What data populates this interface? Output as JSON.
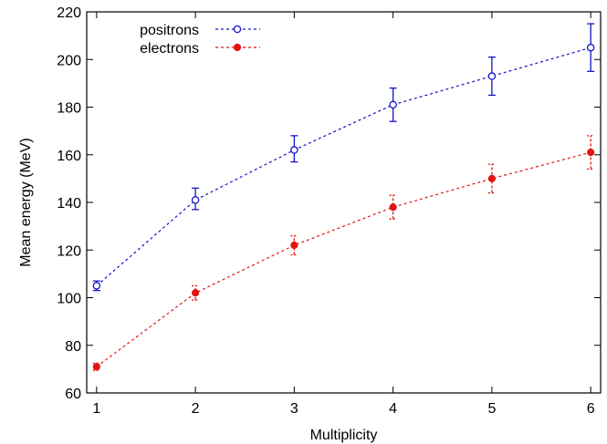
{
  "chart_data": {
    "type": "line",
    "title": "",
    "xlabel": "Multiplicity",
    "ylabel": "Mean energy (MeV)",
    "xlim": [
      0.9,
      6.1
    ],
    "ylim": [
      60,
      220
    ],
    "xticks": [
      1,
      2,
      3,
      4,
      5,
      6
    ],
    "yticks": [
      60,
      80,
      100,
      120,
      140,
      160,
      180,
      200,
      220
    ],
    "grid": false,
    "legend": "top-left",
    "x": [
      1,
      2,
      3,
      4,
      5,
      6
    ],
    "series": [
      {
        "name": "positrons",
        "color": "#1414c8",
        "marker": "open-circle",
        "line": "dashed",
        "values": [
          105,
          141,
          162,
          181,
          193,
          205
        ],
        "err_low": [
          2,
          4,
          5,
          7,
          8,
          10
        ],
        "err_high": [
          2,
          5,
          6,
          7,
          8,
          10
        ]
      },
      {
        "name": "electrons",
        "color": "#e01414",
        "marker": "filled-circle",
        "line": "dashed",
        "values": [
          71,
          102,
          122,
          138,
          150,
          161
        ],
        "err_low": [
          1.5,
          3,
          4,
          5,
          6,
          7
        ],
        "err_high": [
          1.5,
          3,
          4,
          5,
          6,
          7
        ]
      }
    ]
  }
}
